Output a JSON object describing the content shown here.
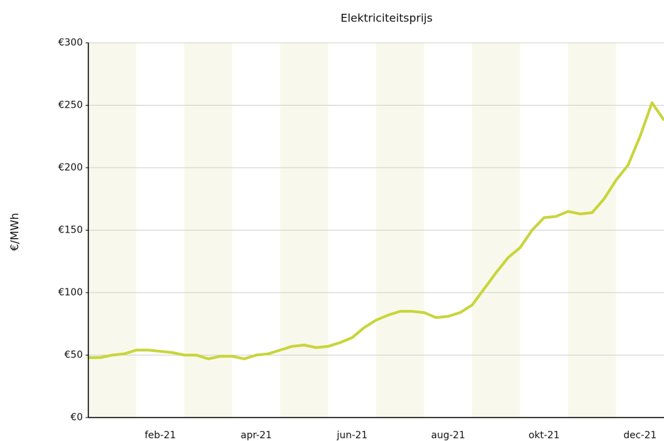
{
  "chart_data": {
    "type": "line",
    "title": "Elektriciteitsprijs",
    "y_label": "€/MWh",
    "categories": [
      null,
      null,
      null,
      null,
      null,
      null,
      "feb-21",
      null,
      null,
      null,
      null,
      null,
      null,
      null,
      "apr-21",
      null,
      null,
      null,
      null,
      null,
      null,
      null,
      "jun-21",
      null,
      null,
      null,
      null,
      null,
      null,
      null,
      "aug-21",
      null,
      null,
      null,
      null,
      null,
      null,
      null,
      "okt-21",
      null,
      null,
      null,
      null,
      null,
      null,
      null,
      "dec-21",
      null,
      null
    ],
    "values": [
      48,
      48,
      50,
      51,
      54,
      54,
      53,
      52,
      50,
      50,
      47,
      49,
      49,
      47,
      50,
      51,
      54,
      57,
      58,
      56,
      57,
      60,
      64,
      72,
      78,
      82,
      85,
      85,
      84,
      80,
      81,
      84,
      90,
      103,
      116,
      128,
      136,
      150,
      160,
      161,
      165,
      163,
      164,
      175,
      190,
      202,
      225,
      252,
      238
    ],
    "color": "#c8d53c",
    "ylim": [
      0,
      300
    ],
    "yticks": [
      {
        "value": 0,
        "label": "€0"
      },
      {
        "value": 50,
        "label": "€50"
      },
      {
        "value": 100,
        "label": "€100"
      },
      {
        "value": 150,
        "label": "€150"
      },
      {
        "value": 200,
        "label": "€200"
      },
      {
        "value": 250,
        "label": "€250"
      },
      {
        "value": 300,
        "label": "€300"
      }
    ],
    "grid": true
  }
}
